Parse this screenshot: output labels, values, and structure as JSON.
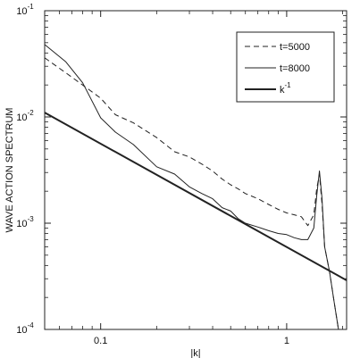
{
  "chart_data": {
    "type": "line",
    "xlabel": "|k|",
    "ylabel": "WAVE ACTION SPECTRUM",
    "xscale": "log",
    "yscale": "log",
    "xlim": [
      0.05,
      2.1
    ],
    "ylim": [
      0.0001,
      0.1
    ],
    "x_ticks": [
      {
        "value": 0.1,
        "label": "0.1"
      },
      {
        "value": 1,
        "label": "1"
      }
    ],
    "y_ticks": [
      {
        "value": 0.1,
        "base": "10",
        "exp": "-1"
      },
      {
        "value": 0.01,
        "base": "10",
        "exp": "-2"
      },
      {
        "value": 0.001,
        "base": "10",
        "exp": "-3"
      },
      {
        "value": 0.0001,
        "base": "10",
        "exp": "-4"
      }
    ],
    "grid": false,
    "legend_position": "top-right",
    "series": [
      {
        "name": "t=5000",
        "style": "dashed",
        "x": [
          0.05,
          0.065,
          0.08,
          0.1,
          0.12,
          0.15,
          0.2,
          0.25,
          0.3,
          0.35,
          0.4,
          0.45,
          0.5,
          0.55,
          0.6,
          0.7,
          0.8,
          0.9,
          1.0,
          1.1,
          1.2,
          1.3,
          1.4,
          1.45,
          1.5,
          1.55,
          1.6,
          1.7,
          1.8,
          1.9
        ],
        "y": [
          0.036,
          0.026,
          0.02,
          0.015,
          0.0105,
          0.0088,
          0.0064,
          0.0047,
          0.0042,
          0.0036,
          0.0031,
          0.0026,
          0.0023,
          0.0021,
          0.0019,
          0.0017,
          0.0015,
          0.00135,
          0.00125,
          0.0012,
          0.00115,
          0.00095,
          0.0012,
          0.0021,
          0.0029,
          0.0015,
          0.0006,
          0.00035,
          0.00018,
          0.0001
        ]
      },
      {
        "name": "t=8000",
        "style": "solid",
        "x": [
          0.05,
          0.065,
          0.08,
          0.1,
          0.12,
          0.15,
          0.2,
          0.25,
          0.3,
          0.35,
          0.4,
          0.45,
          0.5,
          0.55,
          0.6,
          0.7,
          0.8,
          0.9,
          1.0,
          1.1,
          1.2,
          1.3,
          1.4,
          1.45,
          1.5,
          1.55,
          1.6,
          1.7,
          1.8,
          1.9
        ],
        "y": [
          0.048,
          0.033,
          0.021,
          0.0098,
          0.0072,
          0.0055,
          0.0034,
          0.0029,
          0.0022,
          0.0019,
          0.0017,
          0.0014,
          0.0013,
          0.0011,
          0.001,
          0.00092,
          0.00085,
          0.0008,
          0.00078,
          0.00073,
          0.0007,
          0.0007,
          0.0009,
          0.0018,
          0.0031,
          0.0017,
          0.0006,
          0.00035,
          0.00018,
          0.0001
        ]
      },
      {
        "name": "k",
        "name_superscript": "-1",
        "style": "solid-thick",
        "x": [
          0.05,
          2.1
        ],
        "y": [
          0.011,
          0.00029
        ]
      }
    ]
  }
}
